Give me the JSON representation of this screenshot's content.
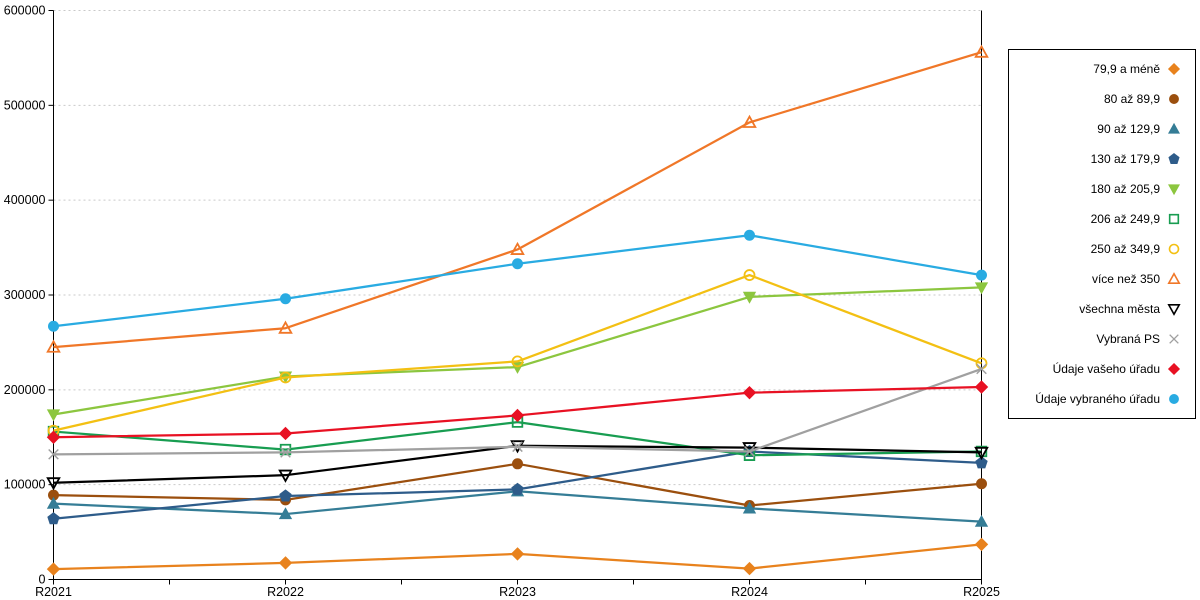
{
  "chart_data": {
    "type": "line",
    "title": "",
    "x_axis": {
      "label": "",
      "categories": [
        "R2021",
        "R2022",
        "R2023",
        "R2024",
        "R2025"
      ]
    },
    "y_axis": {
      "label": "",
      "min": 0,
      "max": 600000,
      "step": 100000,
      "tick_labels": [
        "0",
        "100000",
        "200000",
        "300000",
        "400000",
        "500000",
        "600000"
      ]
    },
    "grid": "horizontal dotted lines at each 100000",
    "legend_position": "right boxed",
    "series": [
      {
        "name": "79,9 a méně",
        "marker": "diamond",
        "style": "filled",
        "color": "#E8821D",
        "values": [
          11000,
          17500,
          27000,
          11500,
          37000
        ]
      },
      {
        "name": "80 až 89,9",
        "marker": "circle",
        "style": "filled",
        "color": "#9B4F0E",
        "values": [
          89000,
          84000,
          122000,
          78000,
          101000
        ]
      },
      {
        "name": "90 až 129,9",
        "marker": "triangle-up",
        "style": "filled",
        "color": "#357D96",
        "values": [
          80000,
          69000,
          93000,
          75000,
          61000
        ]
      },
      {
        "name": "130 až 179,9",
        "marker": "pentagon",
        "style": "filled",
        "color": "#2E5C8A",
        "values": [
          64000,
          88000,
          95000,
          135000,
          123000
        ]
      },
      {
        "name": "180 až 205,9",
        "marker": "triangle-down",
        "style": "filled",
        "color": "#8CC63F",
        "values": [
          174000,
          214000,
          224000,
          298000,
          308000
        ]
      },
      {
        "name": "206 až 249,9",
        "marker": "square",
        "style": "open",
        "color": "#189D51",
        "values": [
          156000,
          137000,
          166000,
          131000,
          135000
        ]
      },
      {
        "name": "250 až 349,9",
        "marker": "circle",
        "style": "open",
        "color": "#F3C013",
        "values": [
          157000,
          213000,
          230000,
          321000,
          228000
        ]
      },
      {
        "name": "více než 350",
        "marker": "triangle-up",
        "style": "open",
        "color": "#F07728",
        "values": [
          245000,
          265000,
          348000,
          482000,
          556000
        ]
      },
      {
        "name": "všechna města",
        "marker": "triangle-down",
        "style": "open",
        "color": "#000000",
        "values": [
          102000,
          110000,
          141000,
          139000,
          134000
        ]
      },
      {
        "name": "Vybraná PS",
        "marker": "x",
        "style": "open",
        "color": "#A0A0A0",
        "values": [
          132000,
          134000,
          140000,
          135000,
          222000
        ]
      },
      {
        "name": "Údaje vašeho úřadu",
        "marker": "diamond",
        "style": "filled",
        "color": "#E81123",
        "values": [
          150000,
          154000,
          173000,
          197000,
          203000
        ]
      },
      {
        "name": "Údaje vybraného úřadu",
        "marker": "circle",
        "style": "filled",
        "color": "#29ABE2",
        "values": [
          267000,
          296000,
          333000,
          363000,
          321000
        ]
      }
    ]
  }
}
